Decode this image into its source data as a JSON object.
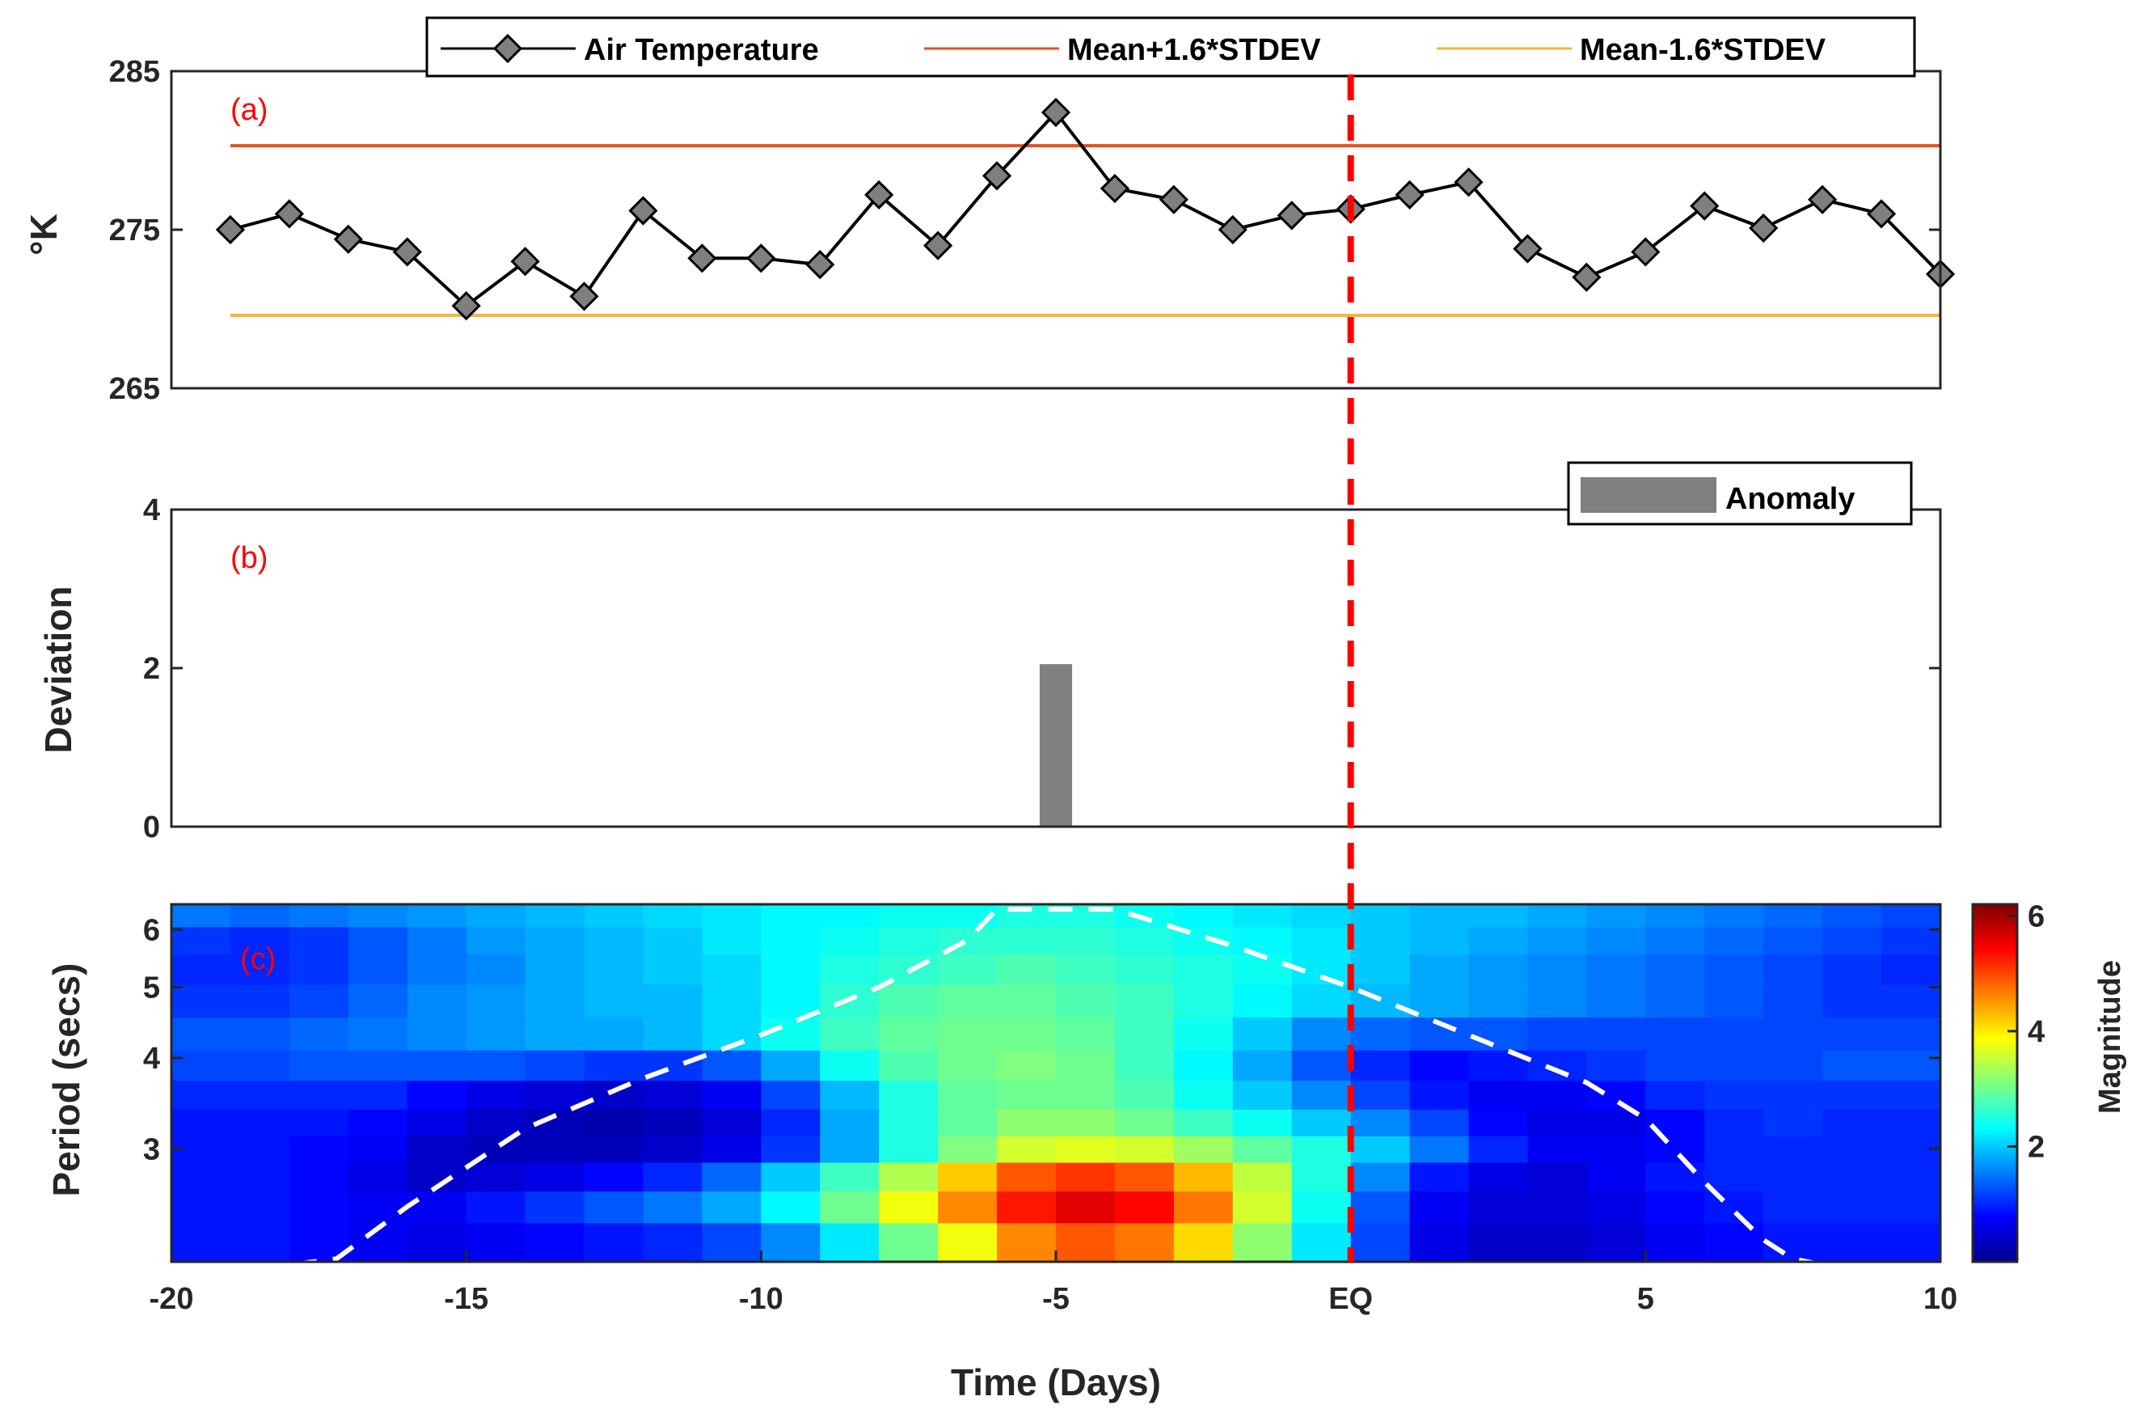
{
  "colors": {
    "temperature": "#000000",
    "marker_fill": "#7f7f7f",
    "upper": "#e8501e",
    "lower": "#f5b43a",
    "anomaly": "#808080",
    "eq_line": "#ff0000",
    "cone": "#ffffff"
  },
  "chart_data": [
    {
      "type": "line",
      "panel_label": "(a)",
      "ylabel": "°K",
      "ylim": [
        265,
        285
      ],
      "yticks": [
        265,
        275,
        285
      ],
      "xlim": [
        -20,
        10
      ],
      "legend": {
        "placement": "top",
        "entries": [
          "Air Temperature",
          "Mean+1.6*STDEV",
          "Mean-1.6*STDEV"
        ]
      },
      "series": [
        {
          "name": "Air Temperature",
          "x": [
            -19,
            -18,
            -17,
            -16,
            -15,
            -14,
            -13,
            -12,
            -11,
            -10,
            -9,
            -8,
            -7,
            -6,
            -5,
            -4,
            -3,
            -2,
            -1,
            0,
            1,
            2,
            3,
            4,
            5,
            6,
            7,
            8,
            9,
            10
          ],
          "values": [
            275.0,
            276.0,
            274.4,
            273.6,
            270.2,
            273.0,
            270.8,
            276.2,
            273.2,
            273.2,
            272.8,
            277.2,
            274.0,
            278.4,
            282.4,
            277.6,
            276.9,
            275.0,
            275.9,
            276.3,
            277.2,
            278.0,
            273.8,
            272.0,
            273.6,
            276.5,
            275.1,
            276.9,
            276.0,
            272.2
          ]
        },
        {
          "name": "Mean+1.6*STDEV",
          "x": [
            -19,
            10
          ],
          "values": [
            280.3,
            280.3
          ]
        },
        {
          "name": "Mean-1.6*STDEV",
          "x": [
            -19,
            10
          ],
          "values": [
            269.6,
            269.6
          ]
        }
      ]
    },
    {
      "type": "bar",
      "panel_label": "(b)",
      "ylabel": "Deviation",
      "ylim": [
        0,
        4
      ],
      "yticks": [
        0,
        2,
        4
      ],
      "xlim": [
        -20,
        10
      ],
      "legend": {
        "placement": "top-right",
        "entries": [
          "Anomaly"
        ]
      },
      "series": [
        {
          "name": "Anomaly",
          "x": [
            -5
          ],
          "values": [
            2.05
          ]
        }
      ]
    },
    {
      "type": "heatmap",
      "panel_label": "(c)",
      "ylabel": "Period (secs)",
      "xlabel": "Time (Days)",
      "xlim": [
        -20,
        10
      ],
      "ylim": [
        2.1,
        6.5
      ],
      "y_scale": "log",
      "xticks": [
        -20,
        -15,
        -10,
        -5,
        0,
        5,
        10
      ],
      "xtick_labels": [
        "-20",
        "-15",
        "-10",
        "-5",
        "EQ",
        "5",
        "10"
      ],
      "yticks": [
        3,
        4,
        5,
        6
      ],
      "colorbar": {
        "label": "Magnitude",
        "ticks": [
          2,
          4,
          6
        ],
        "range": [
          0,
          6.2
        ]
      },
      "eq_line_x": 0,
      "x": [
        -19.5,
        -18.5,
        -17.5,
        -16.5,
        -15.5,
        -14.5,
        -13.5,
        -12.5,
        -11.5,
        -10.5,
        -9.5,
        -8.5,
        -7.5,
        -6.5,
        -5.5,
        -4.5,
        -3.5,
        -2.5,
        -1.5,
        -0.5,
        0.5,
        1.5,
        2.5,
        3.5,
        4.5,
        5.5,
        6.5,
        7.5,
        8.5,
        9.5
      ],
      "y": [
        6.3,
        5.8,
        5.3,
        4.8,
        4.3,
        3.9,
        3.55,
        3.25,
        3.0,
        2.75,
        2.5,
        2.25
      ],
      "values": [
        [
          1.5,
          1.4,
          1.5,
          1.6,
          1.7,
          1.8,
          1.9,
          2.0,
          2.1,
          2.2,
          2.3,
          2.3,
          2.4,
          2.4,
          2.5,
          2.5,
          2.4,
          2.3,
          2.2,
          2.1,
          2.0,
          1.9,
          1.9,
          1.8,
          1.7,
          1.6,
          1.5,
          1.4,
          1.3,
          1.2
        ],
        [
          1.1,
          1.0,
          1.1,
          1.3,
          1.5,
          1.7,
          1.8,
          1.9,
          2.0,
          2.2,
          2.3,
          2.4,
          2.5,
          2.6,
          2.6,
          2.6,
          2.5,
          2.4,
          2.3,
          2.2,
          2.0,
          1.9,
          1.8,
          1.7,
          1.6,
          1.5,
          1.4,
          1.3,
          1.2,
          1.1
        ],
        [
          1.0,
          1.0,
          1.1,
          1.3,
          1.5,
          1.6,
          1.8,
          1.9,
          2.0,
          2.1,
          2.3,
          2.5,
          2.6,
          2.7,
          2.8,
          2.7,
          2.6,
          2.5,
          2.4,
          2.2,
          2.0,
          1.8,
          1.7,
          1.6,
          1.5,
          1.4,
          1.3,
          1.2,
          1.1,
          1.0
        ],
        [
          1.1,
          1.1,
          1.2,
          1.4,
          1.6,
          1.7,
          1.8,
          1.9,
          1.9,
          2.1,
          2.3,
          2.6,
          2.8,
          2.9,
          2.9,
          2.8,
          2.7,
          2.5,
          2.3,
          2.1,
          1.9,
          1.8,
          1.7,
          1.6,
          1.5,
          1.4,
          1.3,
          1.2,
          1.1,
          1.1
        ],
        [
          1.3,
          1.3,
          1.4,
          1.5,
          1.6,
          1.7,
          1.8,
          1.8,
          1.9,
          2.1,
          2.4,
          2.7,
          2.9,
          3.0,
          3.0,
          2.9,
          2.7,
          2.4,
          2.0,
          1.6,
          1.4,
          1.3,
          1.3,
          1.2,
          1.2,
          1.2,
          1.2,
          1.2,
          1.2,
          1.2
        ],
        [
          1.2,
          1.2,
          1.3,
          1.3,
          1.3,
          1.3,
          1.2,
          1.1,
          1.1,
          1.3,
          1.8,
          2.4,
          2.8,
          3.0,
          3.1,
          3.0,
          2.7,
          2.3,
          1.8,
          1.3,
          1.0,
          0.8,
          0.9,
          1.0,
          1.1,
          1.2,
          1.2,
          1.2,
          1.3,
          1.3
        ],
        [
          1.0,
          1.0,
          1.0,
          1.0,
          0.8,
          0.6,
          0.5,
          0.4,
          0.5,
          0.7,
          1.2,
          1.9,
          2.5,
          2.9,
          3.0,
          3.0,
          2.8,
          2.4,
          2.0,
          1.6,
          1.2,
          0.9,
          0.7,
          0.7,
          0.8,
          1.0,
          1.1,
          1.1,
          1.1,
          1.1
        ],
        [
          0.9,
          0.9,
          0.9,
          0.8,
          0.6,
          0.4,
          0.3,
          0.2,
          0.3,
          0.5,
          1.0,
          1.8,
          2.5,
          2.9,
          3.2,
          3.2,
          3.0,
          2.7,
          2.4,
          2.0,
          1.6,
          1.2,
          0.8,
          0.6,
          0.6,
          0.8,
          1.0,
          1.1,
          1.0,
          1.0
        ],
        [
          0.9,
          0.9,
          0.8,
          0.7,
          0.4,
          0.3,
          0.3,
          0.3,
          0.4,
          0.6,
          1.1,
          1.8,
          2.5,
          3.1,
          3.6,
          3.7,
          3.6,
          3.3,
          2.9,
          2.5,
          2.0,
          1.5,
          1.0,
          0.7,
          0.7,
          0.8,
          1.0,
          1.0,
          1.0,
          1.0
        ],
        [
          0.9,
          0.9,
          0.8,
          0.6,
          0.4,
          0.5,
          0.6,
          0.8,
          1.0,
          1.4,
          2.0,
          2.7,
          3.4,
          4.2,
          4.9,
          5.1,
          4.9,
          4.3,
          3.5,
          2.5,
          1.6,
          0.9,
          0.6,
          0.5,
          0.7,
          0.9,
          1.0,
          1.0,
          1.0,
          1.0
        ],
        [
          0.9,
          0.9,
          0.8,
          0.7,
          0.7,
          0.9,
          1.1,
          1.3,
          1.5,
          1.8,
          2.3,
          3.0,
          3.8,
          4.6,
          5.3,
          5.6,
          5.4,
          4.7,
          3.6,
          2.4,
          1.3,
          0.7,
          0.5,
          0.5,
          0.6,
          0.8,
          0.9,
          1.0,
          1.0,
          1.0
        ],
        [
          0.9,
          0.9,
          0.8,
          0.7,
          0.6,
          0.7,
          0.8,
          0.9,
          1.0,
          1.2,
          1.6,
          2.2,
          3.0,
          3.8,
          4.6,
          4.9,
          4.7,
          4.1,
          3.2,
          2.2,
          1.2,
          0.6,
          0.4,
          0.4,
          0.5,
          0.7,
          0.8,
          0.9,
          0.9,
          0.9
        ]
      ],
      "cone_of_influence": {
        "x": [
          -20,
          -18,
          -17.2,
          -16,
          -14,
          -12,
          -10,
          -8,
          -6.5,
          -6,
          -4,
          -2,
          0,
          2,
          4,
          5,
          6,
          7,
          7.5,
          8,
          10
        ],
        "values": [
          2.08,
          2.08,
          2.12,
          2.5,
          3.2,
          3.75,
          4.3,
          5.0,
          5.8,
          6.4,
          6.4,
          5.7,
          5.0,
          4.3,
          3.7,
          3.3,
          2.7,
          2.25,
          2.12,
          2.08,
          2.08
        ]
      }
    }
  ]
}
